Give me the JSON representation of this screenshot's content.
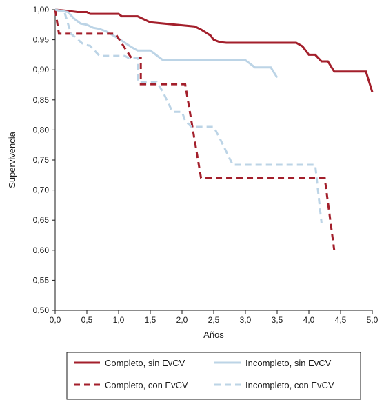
{
  "chart_data": {
    "type": "line",
    "title": "",
    "xlabel": "Años",
    "ylabel": "Supervivencia",
    "xlim": [
      0,
      5
    ],
    "ylim": [
      0.5,
      1.0
    ],
    "x_ticks": [
      "0,0",
      "0,5",
      "1,0",
      "1,5",
      "2,0",
      "2,5",
      "3,0",
      "3,5",
      "4,0",
      "4,5",
      "5,0"
    ],
    "y_ticks": [
      "0,50",
      "0,55",
      "0,60",
      "0,65",
      "0,70",
      "0,75",
      "0,80",
      "0,85",
      "0,90",
      "0,95",
      "1,00"
    ],
    "grid": false,
    "legend_position": "bottom",
    "series": [
      {
        "name": "Completo, sin EvCV",
        "color": "#a31f2b",
        "style": "solid",
        "x": [
          0,
          0.2,
          0.35,
          0.5,
          0.55,
          1.0,
          1.05,
          1.3,
          1.4,
          1.5,
          1.9,
          2.2,
          2.3,
          2.45,
          2.5,
          2.6,
          2.7,
          3.0,
          3.8,
          3.9,
          4.0,
          4.1,
          4.2,
          4.3,
          4.4,
          4.9,
          5.0
        ],
        "y": [
          1.0,
          0.998,
          0.996,
          0.996,
          0.993,
          0.993,
          0.989,
          0.989,
          0.984,
          0.979,
          0.975,
          0.972,
          0.967,
          0.957,
          0.95,
          0.946,
          0.945,
          0.945,
          0.945,
          0.939,
          0.925,
          0.925,
          0.914,
          0.914,
          0.897,
          0.897,
          0.863
        ]
      },
      {
        "name": "Incompleto, sin EvCV",
        "color": "#bcd4e6",
        "style": "solid",
        "x": [
          0,
          0.2,
          0.3,
          0.4,
          0.5,
          0.6,
          0.7,
          0.8,
          0.9,
          1.0,
          1.1,
          1.2,
          1.3,
          1.5,
          1.7,
          2.0,
          2.5,
          3.0,
          3.15,
          3.4,
          3.5
        ],
        "y": [
          1.0,
          0.996,
          0.985,
          0.977,
          0.975,
          0.97,
          0.968,
          0.964,
          0.958,
          0.952,
          0.945,
          0.938,
          0.932,
          0.932,
          0.916,
          0.916,
          0.916,
          0.916,
          0.904,
          0.904,
          0.887
        ]
      },
      {
        "name": "Completo, con EvCV",
        "color": "#a31f2b",
        "style": "dashed",
        "x": [
          0,
          0.06,
          0.06,
          0.95,
          0.95,
          1.2,
          1.2,
          1.35,
          1.35,
          2.05,
          2.05,
          2.3,
          2.3,
          4.25,
          4.25,
          4.4
        ],
        "y": [
          1.0,
          0.96,
          0.96,
          0.96,
          0.96,
          0.92,
          0.92,
          0.92,
          0.876,
          0.876,
          0.876,
          0.72,
          0.72,
          0.72,
          0.72,
          0.6
        ]
      },
      {
        "name": "Incompleto, con EvCV",
        "color": "#bcd4e6",
        "style": "dashed",
        "x": [
          0,
          0.15,
          0.25,
          0.45,
          0.55,
          0.7,
          1.1,
          1.15,
          1.3,
          1.3,
          1.6,
          1.7,
          1.85,
          2.0,
          2.05,
          2.15,
          2.15,
          2.5,
          2.6,
          2.8,
          4.1,
          4.2
        ],
        "y": [
          1.0,
          0.995,
          0.96,
          0.942,
          0.94,
          0.923,
          0.923,
          0.92,
          0.92,
          0.88,
          0.88,
          0.863,
          0.83,
          0.83,
          0.815,
          0.805,
          0.805,
          0.805,
          0.785,
          0.742,
          0.742,
          0.645
        ]
      }
    ]
  }
}
